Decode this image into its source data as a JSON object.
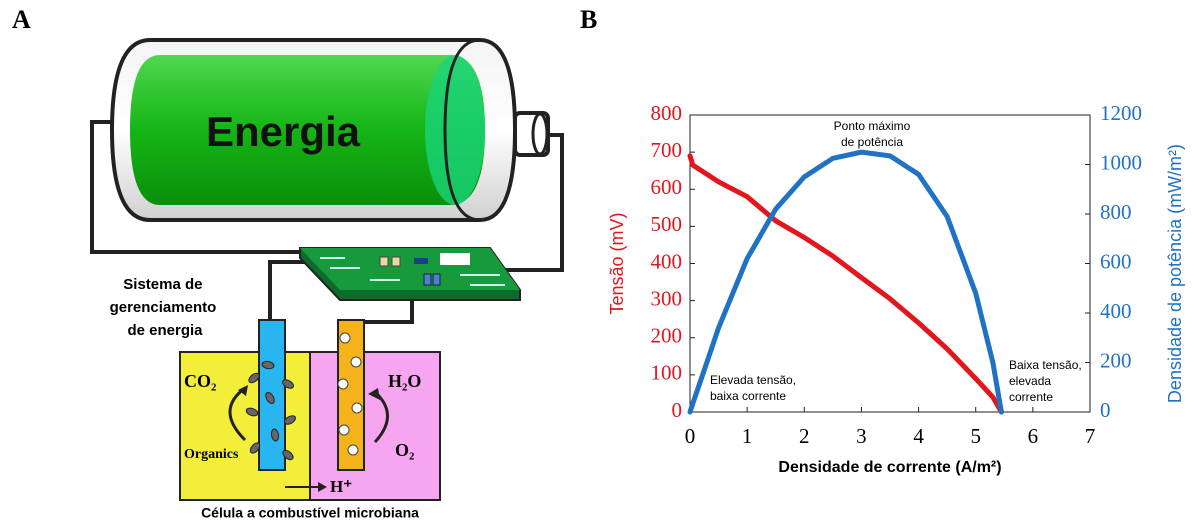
{
  "panels": {
    "a": "A",
    "b": "B"
  },
  "diagram": {
    "battery_label": "Energia",
    "controller_label": [
      "Sistema de",
      "gerenciamento",
      "de energia"
    ],
    "anode_in": "CO₂",
    "anode_substrate": "Organics",
    "cathode_out": "H₂O",
    "cathode_in": "O₂",
    "proton": "H⁺",
    "cell_label": "Célula a combustível microbiana"
  },
  "chart_data": {
    "type": "line",
    "xlabel": "Densidade de corrente (A/m²)",
    "ylabel": "Tensão (mV)",
    "y2label": "Densidade de potência (mW/m²)",
    "xlim": [
      0,
      7
    ],
    "xticks": [
      0,
      1,
      2,
      3,
      4,
      5,
      6,
      7
    ],
    "ylim": [
      0,
      800
    ],
    "yticks": [
      0,
      100,
      200,
      300,
      400,
      500,
      600,
      700,
      800
    ],
    "y2lim": [
      0,
      1200
    ],
    "y2ticks": [
      0,
      200,
      400,
      600,
      800,
      1000,
      1200
    ],
    "x": [
      0,
      0.05,
      0.25,
      0.5,
      1,
      1.5,
      2,
      2.5,
      3,
      3.5,
      4,
      4.5,
      5,
      5.3,
      5.45
    ],
    "series": [
      {
        "color": "#e3161d",
        "axis": "y",
        "values": [
          690,
          665,
          645,
          620,
          580,
          515,
          470,
          420,
          362,
          305,
          240,
          170,
          90,
          40,
          0
        ]
      },
      {
        "color": "#1f72c4",
        "axis": "y2",
        "values": [
          0,
          35,
          170,
          340,
          620,
          820,
          950,
          1025,
          1050,
          1035,
          960,
          790,
          480,
          200,
          0
        ]
      }
    ],
    "annotations": [
      {
        "lines": [
          "Ponto máximo",
          "de potência"
        ]
      },
      {
        "lines": [
          "Elevada tensão,",
          "baixa corrente"
        ]
      },
      {
        "lines": [
          "Baixa tensão,",
          "elevada",
          "corrente"
        ]
      }
    ]
  }
}
